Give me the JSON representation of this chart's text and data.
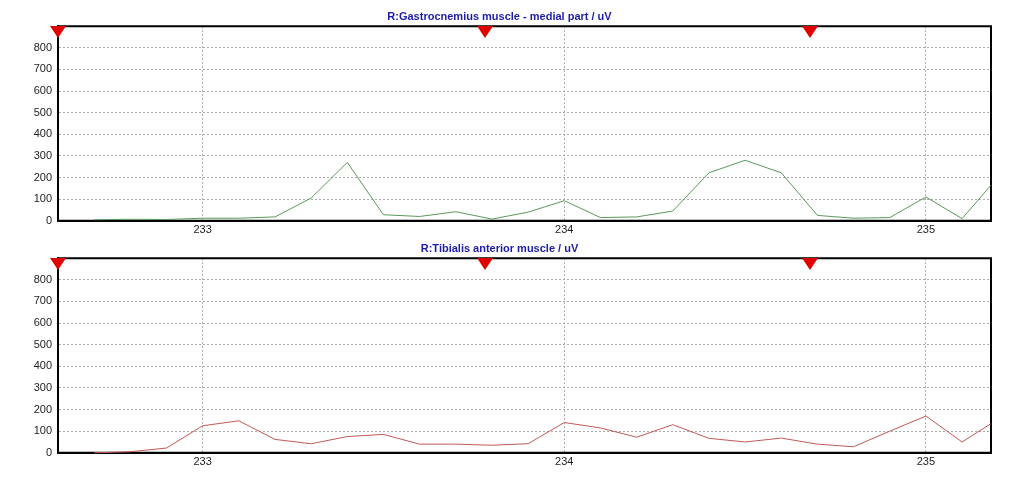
{
  "chart_data": [
    {
      "type": "line",
      "title": "R:Gastrocnemius muscle - medial part / uV",
      "xlim": [
        232.6,
        235.18
      ],
      "xticks": [
        233,
        234,
        235
      ],
      "ylim": [
        0,
        900
      ],
      "yticks": [
        0,
        100,
        200,
        300,
        400,
        500,
        600,
        700,
        800
      ],
      "grid": true,
      "legend": false,
      "marker": "none",
      "series": [
        {
          "color": "#5a9a5a",
          "x": [
            232.7,
            232.8,
            232.9,
            233.0,
            233.1,
            233.2,
            233.3,
            233.4,
            233.5,
            233.6,
            233.7,
            233.8,
            233.9,
            234.0,
            234.1,
            234.2,
            234.3,
            234.4,
            234.5,
            234.6,
            234.7,
            234.8,
            234.9,
            235.0,
            235.1,
            235.18
          ],
          "values": [
            5,
            7,
            6,
            12,
            12,
            18,
            105,
            270,
            28,
            20,
            42,
            8,
            40,
            93,
            15,
            18,
            45,
            222,
            280,
            222,
            25,
            12,
            15,
            110,
            10,
            165
          ]
        }
      ]
    },
    {
      "type": "line",
      "title": "R:Tibialis anterior muscle / uV",
      "xlim": [
        232.6,
        235.18
      ],
      "xticks": [
        233,
        234,
        235
      ],
      "ylim": [
        0,
        900
      ],
      "yticks": [
        0,
        100,
        200,
        300,
        400,
        500,
        600,
        700,
        800
      ],
      "grid": true,
      "legend": false,
      "marker": "none",
      "series": [
        {
          "color": "#c05a5a",
          "x": [
            232.7,
            232.8,
            232.9,
            233.0,
            233.1,
            233.2,
            233.3,
            233.4,
            233.5,
            233.6,
            233.7,
            233.8,
            233.9,
            234.0,
            234.1,
            234.2,
            234.3,
            234.4,
            234.5,
            234.6,
            234.7,
            234.8,
            234.9,
            235.0,
            235.1,
            235.18
          ],
          "values": [
            0,
            5,
            22,
            125,
            148,
            62,
            42,
            75,
            85,
            40,
            40,
            35,
            42,
            140,
            115,
            72,
            130,
            67,
            50,
            68,
            40,
            28,
            100,
            170,
            50,
            135
          ]
        }
      ]
    }
  ]
}
